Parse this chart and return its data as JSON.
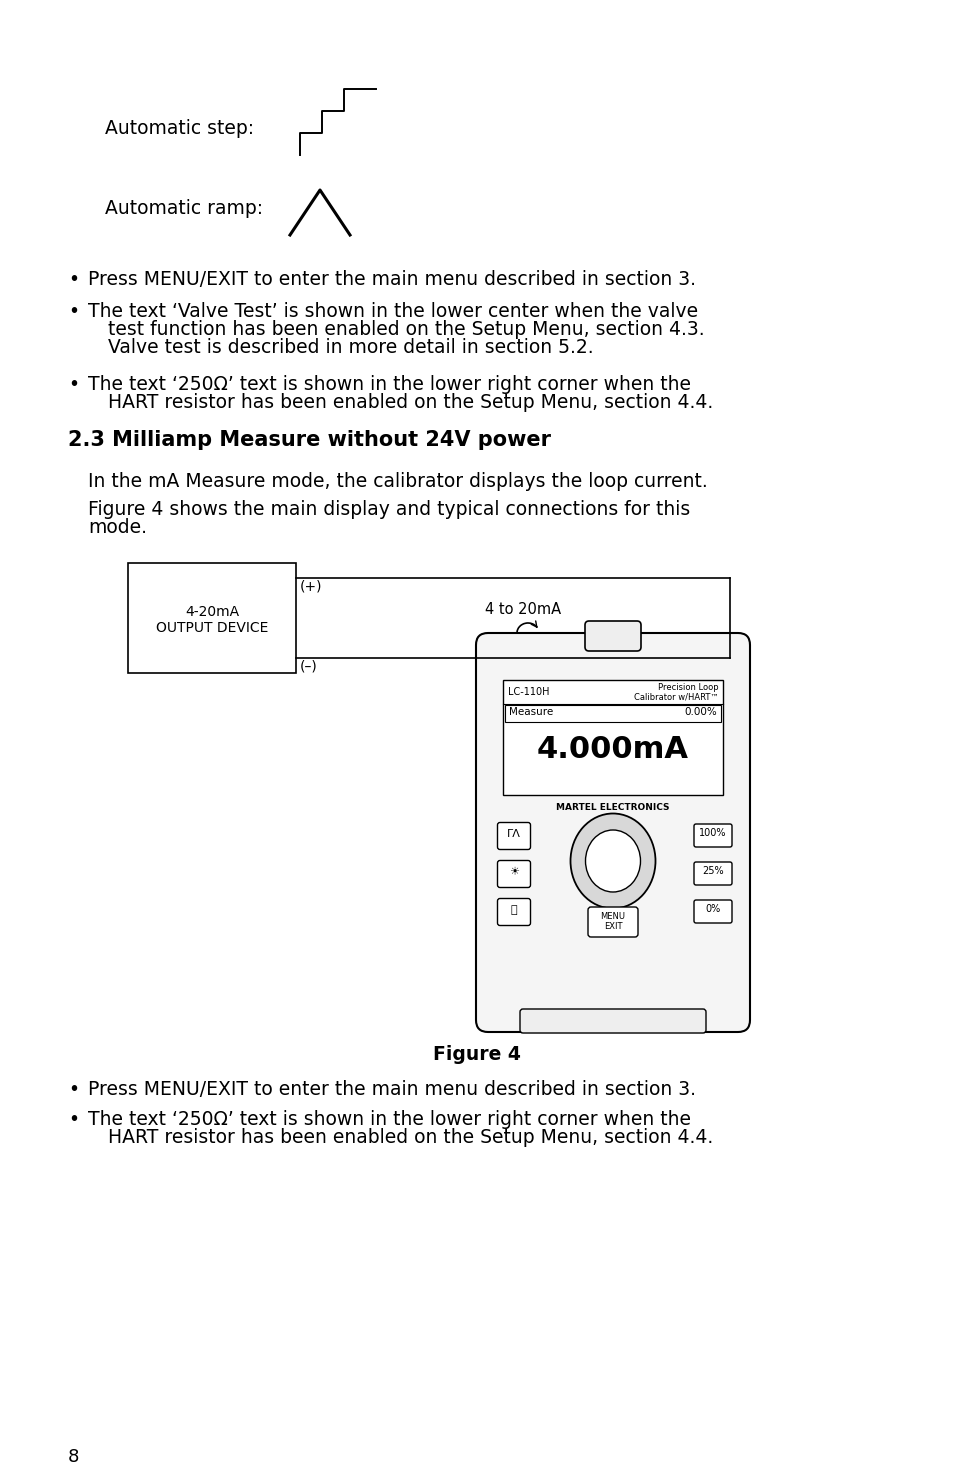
{
  "bg_color": "#ffffff",
  "text_color": "#000000",
  "page_number": "8",
  "section_title": "2.3 Milliamp Measure without 24V power",
  "body_line1": "In the mA Measure mode, the calibrator displays the loop current.",
  "body_line2a": "Figure 4 shows the main display and typical connections for this",
  "body_line2b": "mode.",
  "figure_caption": "Figure 4",
  "bullet1": "Press MENU/EXIT to enter the main menu described in section 3.",
  "bullet2a": "The text ‘Valve Test’ is shown in the lower center when the valve",
  "bullet2b": "test function has been enabled on the Setup Menu, section 4.3.",
  "bullet2c": "Valve test is described in more detail in section 5.2.",
  "bullet3a": "The text ‘250Ω’ text is shown in the lower right corner when the",
  "bullet3b": "HART resistor has been enabled on the Setup Menu, section 4.4.",
  "bot_bullet1": "Press MENU/EXIT to enter the main menu described in section 3.",
  "bot_bullet2a": "The text ‘250Ω’ text is shown in the lower right corner when the",
  "bot_bullet2b": "HART resistor has been enabled on the Setup Menu, section 4.4.",
  "automatic_step_label": "Automatic step:",
  "automatic_ramp_label": "Automatic ramp:",
  "device_label_line1": "4-20mA",
  "device_label_line2": "OUTPUT DEVICE",
  "connection_label": "4 to 20mA",
  "plus_label": "(+)",
  "minus_label": "(–)",
  "lc110_line1": "LC-110H",
  "lc110_line2": "Precision Loop",
  "lc110_line3": "Calibrator w/HART™",
  "lc110_mode": "Measure",
  "lc110_percent": "0.00%",
  "lc110_reading": "4.000mA",
  "lc110_brand": "MARTEL ELECTRONICS",
  "btn_step_ramp": "ΓΛ",
  "btn_light": "☀",
  "btn_power": "Ⓞ",
  "btn_100": "100%",
  "btn_25": "25%",
  "btn_0": "0%",
  "btn_menu": "MENU\nEXIT",
  "fs_body": 13.5,
  "fs_section": 15,
  "fs_bullet": 13.5
}
